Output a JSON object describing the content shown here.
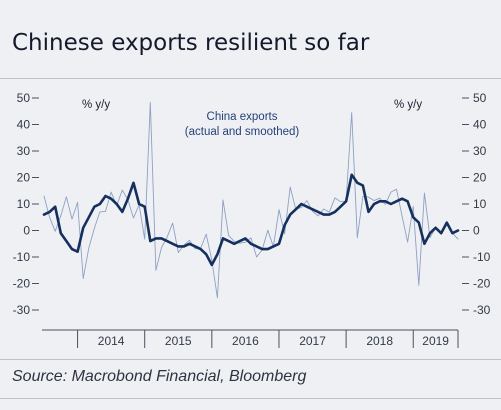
{
  "chart_data": {
    "type": "line",
    "title": "Chinese exports resilient so far",
    "source": "Source: Macrobond Financial, Bloomberg",
    "unit_left": "% y/y",
    "unit_right": "% y/y",
    "annotation": [
      "China exports",
      "(actual and smoothed)"
    ],
    "ylim": [
      -30,
      50
    ],
    "yticks": [
      -30,
      -20,
      -10,
      0,
      10,
      20,
      30,
      40,
      50
    ],
    "ytick_labels": [
      "-30",
      "-20",
      "-10",
      "0",
      "10",
      "20",
      "30",
      "40",
      "50"
    ],
    "x_categories": [
      "2014",
      "2015",
      "2016",
      "2017",
      "2018",
      "2019"
    ],
    "x_start": "2013-07",
    "x_end": "2019-09",
    "grid": false,
    "series": [
      {
        "role": "actual",
        "color": "#8fa0c4",
        "x": [
          "2013-07",
          "2013-08",
          "2013-09",
          "2013-10",
          "2013-11",
          "2013-12",
          "2014-01",
          "2014-02",
          "2014-03",
          "2014-04",
          "2014-05",
          "2014-06",
          "2014-07",
          "2014-08",
          "2014-09",
          "2014-10",
          "2014-11",
          "2014-12",
          "2015-01",
          "2015-02",
          "2015-03",
          "2015-04",
          "2015-05",
          "2015-06",
          "2015-07",
          "2015-08",
          "2015-09",
          "2015-10",
          "2015-11",
          "2015-12",
          "2016-01",
          "2016-02",
          "2016-03",
          "2016-04",
          "2016-05",
          "2016-06",
          "2016-07",
          "2016-08",
          "2016-09",
          "2016-10",
          "2016-11",
          "2016-12",
          "2017-01",
          "2017-02",
          "2017-03",
          "2017-04",
          "2017-05",
          "2017-06",
          "2017-07",
          "2017-08",
          "2017-09",
          "2017-10",
          "2017-11",
          "2017-12",
          "2018-01",
          "2018-02",
          "2018-03",
          "2018-04",
          "2018-05",
          "2018-06",
          "2018-07",
          "2018-08",
          "2018-09",
          "2018-10",
          "2018-11",
          "2018-12",
          "2019-01",
          "2019-02",
          "2019-03",
          "2019-04",
          "2019-05",
          "2019-06",
          "2019-07",
          "2019-08",
          "2019-09"
        ],
        "values": [
          13,
          5,
          -0.3,
          5.6,
          12.7,
          4.3,
          10.6,
          -18.1,
          -6.6,
          0.9,
          7.0,
          7.2,
          14.5,
          9.4,
          15.3,
          11.6,
          4.7,
          9.7,
          -3.3,
          48.3,
          -15.0,
          -6.4,
          -2.5,
          2.8,
          -8.3,
          -5.5,
          -3.7,
          -6.9,
          -6.8,
          -1.4,
          -11.2,
          -25.4,
          11.5,
          -1.8,
          -4.1,
          -4.8,
          -4.4,
          -2.8,
          -10.0,
          -7.3,
          0.1,
          -6.1,
          7.9,
          -1.3,
          16.4,
          8.0,
          8.7,
          11.3,
          7.2,
          5.5,
          8.1,
          6.9,
          12.3,
          10.9,
          11.1,
          44.5,
          -2.7,
          12.9,
          12.6,
          11.3,
          12.2,
          9.8,
          14.5,
          15.6,
          5.4,
          -4.4,
          9.1,
          -20.7,
          14.2,
          -2.7,
          1.1,
          -1.3,
          3.3,
          -1.0,
          -3.2
        ]
      },
      {
        "role": "smoothed",
        "color": "#15305f",
        "x": [
          "2013-07",
          "2013-08",
          "2013-09",
          "2013-10",
          "2013-11",
          "2013-12",
          "2014-01",
          "2014-02",
          "2014-03",
          "2014-04",
          "2014-05",
          "2014-06",
          "2014-07",
          "2014-08",
          "2014-09",
          "2014-10",
          "2014-11",
          "2014-12",
          "2015-01",
          "2015-02",
          "2015-03",
          "2015-04",
          "2015-05",
          "2015-06",
          "2015-07",
          "2015-08",
          "2015-09",
          "2015-10",
          "2015-11",
          "2015-12",
          "2016-01",
          "2016-02",
          "2016-03",
          "2016-04",
          "2016-05",
          "2016-06",
          "2016-07",
          "2016-08",
          "2016-09",
          "2016-10",
          "2016-11",
          "2016-12",
          "2017-01",
          "2017-02",
          "2017-03",
          "2017-04",
          "2017-05",
          "2017-06",
          "2017-07",
          "2017-08",
          "2017-09",
          "2017-10",
          "2017-11",
          "2017-12",
          "2018-01",
          "2018-02",
          "2018-03",
          "2018-04",
          "2018-05",
          "2018-06",
          "2018-07",
          "2018-08",
          "2018-09",
          "2018-10",
          "2018-11",
          "2018-12",
          "2019-01",
          "2019-02",
          "2019-03",
          "2019-04",
          "2019-05",
          "2019-06",
          "2019-07",
          "2019-08",
          "2019-09"
        ],
        "values": [
          6,
          7,
          9,
          -1,
          -4,
          -7,
          -8,
          1,
          5,
          9,
          10,
          13,
          12,
          10,
          7,
          12,
          18,
          10,
          9,
          -4,
          -3,
          -3,
          -4,
          -5,
          -6,
          -6,
          -5,
          -6,
          -7,
          -9,
          -13,
          -9,
          -3,
          -4,
          -5,
          -4,
          -3,
          -5,
          -6,
          -7,
          -7,
          -6,
          -5,
          2,
          6,
          8,
          10,
          9,
          8,
          7,
          6,
          6,
          7,
          9,
          11,
          21,
          18,
          17,
          7,
          10,
          11,
          11,
          10,
          11,
          12,
          11,
          5,
          3,
          -5,
          -1,
          1,
          -1,
          3,
          -1,
          0
        ]
      }
    ]
  }
}
